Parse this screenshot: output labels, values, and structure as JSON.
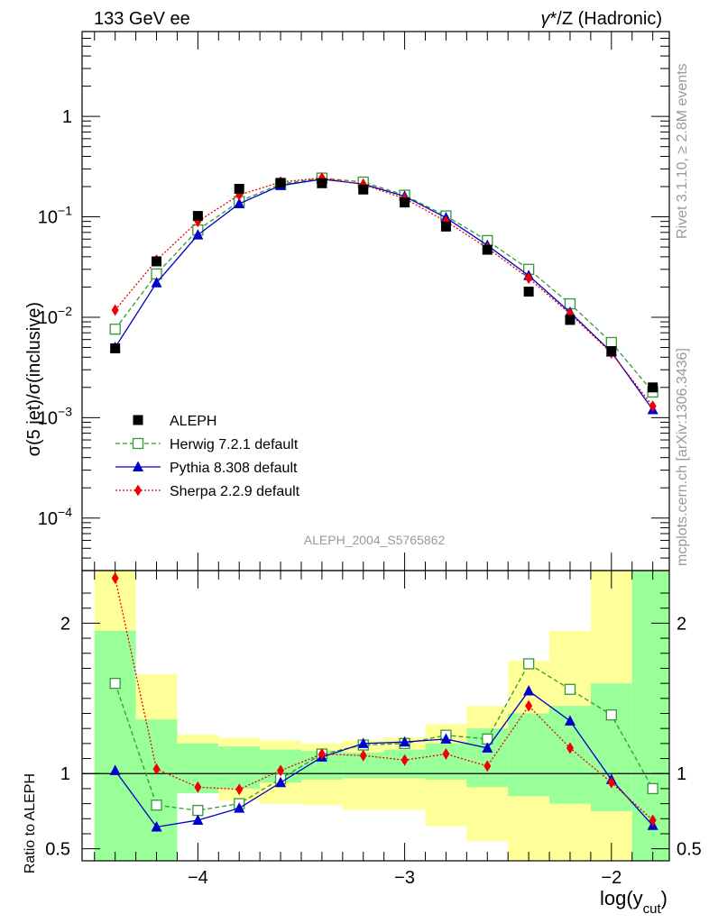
{
  "header": {
    "left_title": "133 GeV ee",
    "right_title_gamma": "γ",
    "right_title_rest": "*/Z (Hadronic)"
  },
  "side_text": {
    "rivet": "Rivet 3.1.10, ≥ 2.8M events",
    "mcplots": "mcplots.cern.ch [arXiv:1306.3436]"
  },
  "analysis_id": "ALEPH_2004_S5765862",
  "colors": {
    "data": "#000000",
    "herwig": "#339933",
    "pythia": "#0000cc",
    "sherpa": "#ee0000",
    "band_inner": "#99ff99",
    "band_outer": "#ffff99"
  },
  "chart_data": [
    {
      "type": "scatter",
      "panel": "main",
      "ylabel": "σ(5 jet)/σ(inclusive)",
      "yscale": "log",
      "ylim": [
        3e-05,
        7
      ],
      "xlim": [
        -4.56,
        -1.72
      ],
      "y_ticks": [
        {
          "value": 1,
          "base": "1",
          "exp": ""
        },
        {
          "value": 0.1,
          "base": "10",
          "exp": "−1"
        },
        {
          "value": 0.01,
          "base": "10",
          "exp": "−2"
        },
        {
          "value": 0.001,
          "base": "10",
          "exp": "−3"
        },
        {
          "value": 0.0001,
          "base": "10",
          "exp": "−4"
        }
      ],
      "x": [
        -4.4,
        -4.2,
        -4.0,
        -3.8,
        -3.6,
        -3.4,
        -3.2,
        -3.0,
        -2.8,
        -2.6,
        -2.4,
        -2.2,
        -2.0,
        -1.8
      ],
      "legend": {
        "position": "lower-left",
        "entries": [
          {
            "key": "data",
            "label": "ALEPH",
            "marker": "square"
          },
          {
            "key": "herwig",
            "label": "Herwig 7.2.1 default",
            "marker": "open-square"
          },
          {
            "key": "pythia",
            "label": "Pythia 8.308 default",
            "marker": "triangle"
          },
          {
            "key": "sherpa",
            "label": "Sherpa 2.2.9 default",
            "marker": "diamond"
          }
        ]
      },
      "series": [
        {
          "name": "ALEPH",
          "key": "data",
          "values": [
            0.0049,
            0.036,
            0.102,
            0.19,
            0.218,
            0.216,
            0.187,
            0.139,
            0.08,
            0.047,
            0.018,
            0.0094,
            0.0046,
            0.002
          ]
        },
        {
          "name": "Herwig 7.2.1 default",
          "key": "herwig",
          "values": [
            0.0076,
            0.027,
            0.074,
            0.142,
            0.212,
            0.243,
            0.222,
            0.164,
            0.102,
            0.058,
            0.03,
            0.0136,
            0.0056,
            0.0018
          ]
        },
        {
          "name": "Pythia 8.308 default",
          "key": "pythia",
          "values": [
            0.005,
            0.022,
            0.066,
            0.135,
            0.205,
            0.237,
            0.212,
            0.16,
            0.098,
            0.052,
            0.026,
            0.0112,
            0.0045,
            0.0012
          ]
        },
        {
          "name": "Sherpa 2.2.9 default",
          "key": "sherpa",
          "values": [
            0.0118,
            0.037,
            0.09,
            0.165,
            0.222,
            0.244,
            0.21,
            0.152,
            0.09,
            0.049,
            0.0245,
            0.0108,
            0.0044,
            0.0013
          ]
        }
      ]
    },
    {
      "type": "line",
      "panel": "ratio",
      "ylabel": "Ratio to ALEPH",
      "xlabel_main": "log(y",
      "xlabel_sub": "cut",
      "xlabel_close": ")",
      "ylim": [
        0.42,
        2.35
      ],
      "xlim": [
        -4.56,
        -1.72
      ],
      "x_ticks": [
        {
          "value": -4,
          "label": "−4"
        },
        {
          "value": -3,
          "label": "−3"
        },
        {
          "value": -2,
          "label": "−2"
        }
      ],
      "y_ticks": [
        {
          "value": 2,
          "label": "2"
        },
        {
          "value": 1,
          "label": "1"
        },
        {
          "value": 0.5,
          "label": "0.5"
        }
      ],
      "x": [
        -4.4,
        -4.2,
        -4.0,
        -3.8,
        -3.6,
        -3.4,
        -3.2,
        -3.0,
        -2.8,
        -2.6,
        -2.4,
        -2.2,
        -2.0,
        -1.8
      ],
      "bin_edges": [
        -4.5,
        -4.3,
        -4.1,
        -3.9,
        -3.7,
        -3.5,
        -3.3,
        -3.1,
        -2.9,
        -2.7,
        -2.5,
        -2.3,
        -2.1,
        -1.9,
        -1.7
      ],
      "band_inner": {
        "low": [
          0.42,
          0.42,
          0.87,
          0.9,
          0.94,
          0.96,
          0.97,
          0.97,
          0.96,
          0.91,
          0.85,
          0.8,
          0.75,
          0.42
        ],
        "high": [
          1.95,
          1.36,
          1.2,
          1.18,
          1.16,
          1.15,
          1.14,
          1.16,
          1.2,
          1.3,
          1.4,
          1.45,
          1.6,
          2.35
        ]
      },
      "band_outer": {
        "low": [
          0.42,
          0.73,
          0.87,
          0.82,
          0.8,
          0.79,
          0.76,
          0.76,
          0.65,
          0.55,
          0.42,
          0.42,
          0.42,
          0.42
        ],
        "high": [
          2.35,
          1.66,
          1.26,
          1.24,
          1.22,
          1.2,
          1.22,
          1.24,
          1.33,
          1.45,
          1.75,
          1.95,
          2.35,
          2.35
        ]
      },
      "series": [
        {
          "name": "Herwig 7.2.1 default",
          "key": "herwig",
          "values": [
            1.6,
            0.79,
            0.755,
            0.8,
            0.965,
            1.13,
            1.19,
            1.2,
            1.255,
            1.23,
            1.73,
            1.56,
            1.39,
            0.9
          ]
        },
        {
          "name": "Pythia 8.308 default",
          "key": "pythia",
          "values": [
            1.02,
            0.645,
            0.69,
            0.77,
            0.94,
            1.11,
            1.2,
            1.21,
            1.23,
            1.17,
            1.55,
            1.35,
            0.96,
            0.655
          ]
        },
        {
          "name": "Sherpa 2.2.9 default",
          "key": "sherpa",
          "values": [
            2.3,
            1.03,
            0.91,
            0.895,
            1.02,
            1.13,
            1.12,
            1.09,
            1.13,
            1.05,
            1.45,
            1.17,
            0.94,
            0.69
          ]
        }
      ]
    }
  ]
}
